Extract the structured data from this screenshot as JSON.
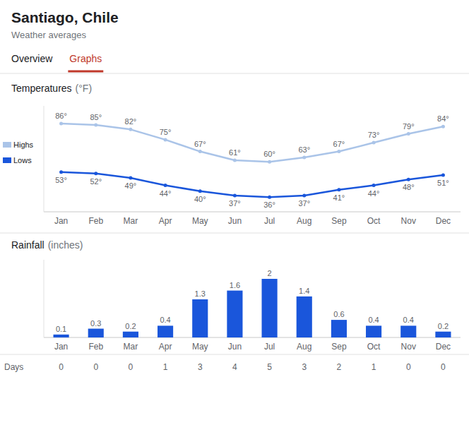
{
  "title": "Santiago, Chile",
  "subtitle": "Weather averages",
  "annotations": [
    "Overview",
    "Graphs"
  ],
  "chart_data": [
    {
      "type": "line",
      "title": "Temperatures",
      "subtitle": "(°F)",
      "categories": [
        "Jan",
        "Feb",
        "Mar",
        "Apr",
        "May",
        "Jun",
        "Jul",
        "Aug",
        "Sep",
        "Oct",
        "Nov",
        "Dec"
      ],
      "series": [
        {
          "name": "Highs",
          "color": "#aac4e8",
          "values": [
            86,
            85,
            82,
            75,
            67,
            61,
            60,
            63,
            67,
            73,
            79,
            84
          ],
          "value_labels": [
            "86°",
            "85°",
            "82°",
            "75°",
            "67°",
            "61°",
            "60°",
            "63°",
            "67°",
            "73°",
            "79°",
            "84°"
          ]
        },
        {
          "name": "Lows",
          "color": "#1a56db",
          "values": [
            53,
            52,
            49,
            44,
            40,
            37,
            36,
            37,
            41,
            44,
            48,
            51
          ],
          "value_labels": [
            "53°",
            "52°",
            "49°",
            "44°",
            "40°",
            "37°",
            "36°",
            "37°",
            "41°",
            "44°",
            "48°",
            "51°"
          ]
        }
      ],
      "ylim": [
        26,
        98
      ],
      "yticks": [],
      "grid": false,
      "legend": "left",
      "data_labels": true,
      "tick_labels": "x"
    },
    {
      "type": "bar",
      "title": "Rainfall",
      "subtitle": "(inches)",
      "categories": [
        "Jan",
        "Feb",
        "Mar",
        "Apr",
        "May",
        "Jun",
        "Jul",
        "Aug",
        "Sep",
        "Oct",
        "Nov",
        "Dec"
      ],
      "values": [
        0.1,
        0.3,
        0.2,
        0.4,
        1.3,
        1.6,
        2.0,
        1.4,
        0.6,
        0.4,
        0.4,
        0.2
      ],
      "color": "#1a56db",
      "ylim": [
        0,
        2.65
      ],
      "yticks": [],
      "grid": false,
      "data_labels": true,
      "tick_labels": "x",
      "days": {
        "name": "Days",
        "values": [
          0,
          0,
          0,
          1,
          3,
          4,
          5,
          3,
          2,
          1,
          0,
          0
        ]
      }
    }
  ]
}
